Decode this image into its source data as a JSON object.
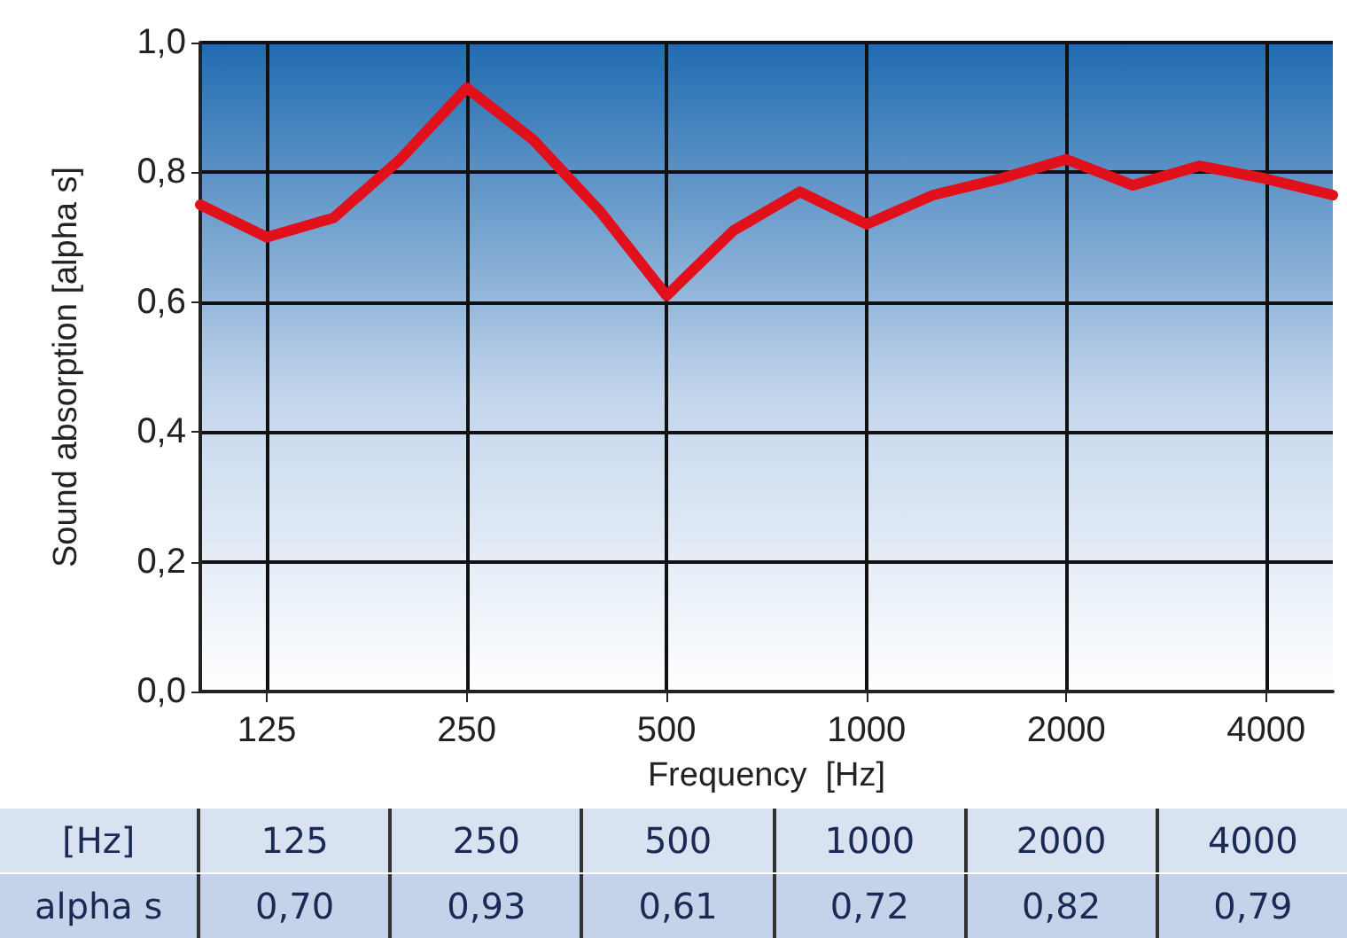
{
  "chart_data": {
    "type": "line",
    "xlabel": "Frequency  [Hz]",
    "ylabel": "Sound absorption [alpha s]",
    "categories": [
      null,
      "125",
      null,
      null,
      "250",
      null,
      null,
      "500",
      null,
      null,
      "1000",
      null,
      null,
      "2000",
      null,
      null,
      "4000",
      null
    ],
    "series": [
      {
        "color": "#e2101a",
        "values": [
          0.75,
          0.7,
          0.73,
          0.82,
          0.93,
          0.85,
          0.74,
          0.61,
          0.71,
          0.77,
          0.72,
          0.765,
          0.79,
          0.82,
          0.78,
          0.81,
          0.79,
          0.765
        ],
        "value_labels": [
          null,
          "0,70",
          null,
          null,
          "0,93",
          null,
          null,
          "0,61",
          null,
          null,
          "0,72",
          null,
          null,
          "0,82",
          null,
          null,
          "0,79",
          null
        ]
      }
    ],
    "annotations": [
      "[Hz]",
      "alpha s"
    ],
    "ylim": [
      0,
      1
    ],
    "yticks": [
      {
        "value": 0,
        "label": "0,0"
      },
      {
        "value": 0.2,
        "label": "0,2"
      },
      {
        "value": 0.4,
        "label": "0,4"
      },
      {
        "value": 0.6,
        "label": "0,6"
      },
      {
        "value": 0.8,
        "label": "0,8"
      },
      {
        "value": 1,
        "label": "1,0"
      }
    ],
    "grid": true,
    "marker": "none",
    "line_style": "solid"
  }
}
